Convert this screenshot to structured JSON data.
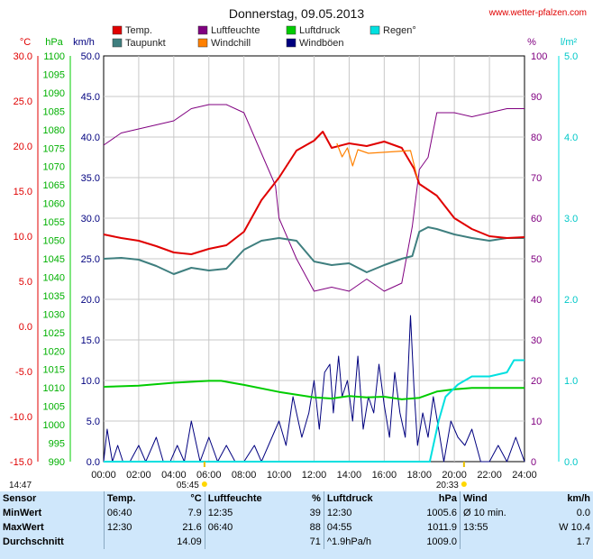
{
  "title": "Donnerstag, 09.05.2013",
  "credit": "www.wetter-pfalzen.com",
  "legend": [
    {
      "label": "Temp.",
      "color": "#e00000"
    },
    {
      "label": "Luftfeuchte",
      "color": "#800080"
    },
    {
      "label": "Luftdruck",
      "color": "#00cc00"
    },
    {
      "label": "Regen°",
      "color": "#00e0e0"
    },
    {
      "label": "Taupunkt",
      "color": "#3f7f7f"
    },
    {
      "label": "Windchill",
      "color": "#ff8000"
    },
    {
      "label": "Windböen",
      "color": "#00007f"
    }
  ],
  "axes": {
    "temp_unit": "°C",
    "press_unit": "hPa",
    "wind_unit": "km/h",
    "hum_unit": "%",
    "rain_unit": "l/m²",
    "temp_ticks": [
      "30.0",
      "25.0",
      "20.0",
      "15.0",
      "10.0",
      "5.0",
      "0.0",
      "-5.0",
      "-10.0",
      "-15.0"
    ],
    "press_ticks": [
      "1100",
      "1095",
      "1090",
      "1085",
      "1080",
      "1075",
      "1070",
      "1065",
      "1060",
      "1055",
      "1050",
      "1045",
      "1040",
      "1035",
      "1030",
      "1025",
      "1020",
      "1015",
      "1010",
      "1005",
      "1000",
      "995",
      "990"
    ],
    "wind_ticks": [
      "50.0",
      "45.0",
      "40.0",
      "35.0",
      "30.0",
      "25.0",
      "20.0",
      "15.0",
      "10.0",
      "5.0",
      "0.0"
    ],
    "hum_ticks": [
      "100",
      "90",
      "80",
      "70",
      "60",
      "50",
      "40",
      "30",
      "20",
      "10",
      "0"
    ],
    "rain_ticks": [
      "5.0",
      "4.0",
      "3.0",
      "2.0",
      "1.0",
      "0.0"
    ],
    "time_ticks": [
      "00:00",
      "02:00",
      "04:00",
      "06:00",
      "08:00",
      "10:00",
      "12:00",
      "14:00",
      "16:00",
      "18:00",
      "20:00",
      "22:00",
      "24:00"
    ]
  },
  "sun": {
    "sunrise": "05:45",
    "sunset": "20:33",
    "moonrise": "14:47"
  },
  "colors": {
    "temp": "#e00000",
    "dew": "#3f7f7f",
    "hum": "#800080",
    "press": "#00cc00",
    "rain": "#00e0e0",
    "chill": "#ff8000",
    "gust": "#00007f",
    "stats_bg": "#cfe7fb"
  },
  "chart_data": {
    "type": "line",
    "title": "Donnerstag, 09.05.2013",
    "x_unit": "hours",
    "xlim": [
      0,
      24
    ],
    "series": [
      {
        "name": "Temp.",
        "axis": "temp",
        "ylim": [
          -15,
          30
        ],
        "x": [
          0,
          1,
          2,
          3,
          4,
          5,
          6,
          7,
          8,
          9,
          10,
          11,
          12,
          12.5,
          13,
          14,
          15,
          16,
          17,
          17.7,
          18,
          19,
          20,
          21,
          22,
          23,
          24
        ],
        "values": [
          10.2,
          9.8,
          9.5,
          8.9,
          8.2,
          8.0,
          8.6,
          9.0,
          10.5,
          14.0,
          16.5,
          19.5,
          20.6,
          21.6,
          19.8,
          20.3,
          20.0,
          20.5,
          19.8,
          17.5,
          15.8,
          14.5,
          12.0,
          10.8,
          10.0,
          9.8,
          9.9
        ]
      },
      {
        "name": "Taupunkt",
        "axis": "temp",
        "ylim": [
          -15,
          30
        ],
        "x": [
          0,
          1,
          2,
          3,
          4,
          5,
          6,
          7,
          8,
          9,
          10,
          11,
          12,
          13,
          14,
          15,
          16,
          17,
          17.6,
          18,
          18.5,
          19,
          20,
          21,
          22,
          23,
          24
        ],
        "values": [
          7.5,
          7.6,
          7.4,
          6.7,
          5.8,
          6.5,
          6.2,
          6.4,
          8.5,
          9.5,
          9.8,
          9.5,
          7.2,
          6.8,
          7.0,
          6.0,
          6.8,
          7.5,
          7.8,
          10.5,
          11.0,
          10.8,
          10.2,
          9.8,
          9.5,
          9.8,
          9.8
        ]
      },
      {
        "name": "Luftfeuchte",
        "axis": "hum",
        "ylim": [
          0,
          100
        ],
        "x": [
          0,
          1,
          2,
          3,
          4,
          5,
          6,
          7,
          8,
          9,
          9.8,
          10,
          11,
          12,
          13,
          14,
          15,
          16,
          17,
          17.6,
          18,
          18.5,
          19,
          20,
          21,
          22,
          23,
          24
        ],
        "values": [
          78,
          81,
          82,
          83,
          84,
          87,
          88,
          88,
          86,
          76,
          68,
          60,
          50,
          42,
          43,
          42,
          45,
          42,
          44,
          58,
          72,
          75,
          86,
          86,
          85,
          86,
          87,
          87
        ]
      },
      {
        "name": "Luftdruck",
        "axis": "press",
        "ylim": [
          990,
          1100
        ],
        "x": [
          0,
          2,
          4,
          6,
          6.7,
          8,
          10,
          12,
          13,
          14,
          15,
          16,
          17,
          18,
          19,
          20,
          21,
          22,
          24
        ],
        "values": [
          1010.3,
          1010.6,
          1011.4,
          1011.9,
          1011.9,
          1010.8,
          1008.9,
          1007.4,
          1007.1,
          1007.8,
          1007.4,
          1007.6,
          1006.9,
          1007.3,
          1009.0,
          1009.6,
          1010.0,
          1010.0,
          1010.0
        ]
      },
      {
        "name": "Windchill",
        "axis": "temp",
        "ylim": [
          -15,
          30
        ],
        "x": [
          13.3,
          13.6,
          13.9,
          14.2,
          14.5,
          15.1,
          17.5,
          17.9
        ],
        "values": [
          20.3,
          18.8,
          19.8,
          17.8,
          19.6,
          19.2,
          19.5,
          16.4
        ]
      },
      {
        "name": "Regen°",
        "axis": "rain",
        "ylim": [
          0,
          5
        ],
        "x": [
          0,
          18.6,
          19.1,
          19.5,
          20.2,
          21.0,
          22.0,
          23.0,
          23.4,
          24.0
        ],
        "values": [
          0,
          0,
          0.5,
          0.8,
          0.95,
          1.05,
          1.05,
          1.1,
          1.25,
          1.25
        ]
      },
      {
        "name": "Windböen",
        "axis": "wind",
        "ylim": [
          0,
          50
        ],
        "x": [
          0,
          0.2,
          0.5,
          0.8,
          1.1,
          1.5,
          2,
          2.4,
          3,
          3.4,
          3.8,
          4.2,
          4.6,
          5,
          5.5,
          6,
          6.5,
          7,
          7.5,
          8,
          8.6,
          9,
          9.6,
          10,
          10.4,
          10.8,
          11.3,
          11.7,
          12,
          12.3,
          12.6,
          12.9,
          13.1,
          13.4,
          13.6,
          13.9,
          14.2,
          14.5,
          14.8,
          15.1,
          15.4,
          15.7,
          16,
          16.3,
          16.6,
          16.9,
          17.2,
          17.5,
          17.7,
          17.9,
          18.2,
          18.5,
          18.8,
          19.1,
          19.4,
          19.8,
          20.2,
          20.6,
          21,
          21.5,
          22,
          22.5,
          23,
          23.5,
          24
        ],
        "values": [
          0,
          4,
          0,
          2,
          0,
          0,
          2,
          0,
          3,
          0,
          0,
          2,
          0,
          5,
          0,
          3,
          0,
          2,
          0,
          0,
          2,
          0,
          3,
          5,
          2,
          8,
          3,
          6,
          10,
          4,
          11,
          12,
          6,
          13,
          8,
          10,
          5,
          13,
          4,
          8,
          6,
          12,
          7,
          3,
          11,
          6,
          3,
          18,
          9,
          2,
          6,
          3,
          8,
          4,
          0,
          5,
          3,
          2,
          4,
          0,
          0,
          2,
          0,
          3,
          0
        ]
      }
    ]
  },
  "stats": {
    "headers": {
      "sensor": "Sensor",
      "temp": "Temp.",
      "temp_unit": "°C",
      "hum": "Luftfeuchte",
      "hum_unit": "%",
      "press": "Luftdruck",
      "press_unit": "hPa",
      "wind": "Wind",
      "wind_unit": "km/h"
    },
    "rows": [
      {
        "label": "MinWert",
        "t_time": "06:40",
        "t_val": "7.9",
        "h_time": "12:35",
        "h_val": "39",
        "p_time": "12:30",
        "p_val": "1005.6",
        "w_time": "Ø 10 min.",
        "w_val": "0.0"
      },
      {
        "label": "MaxWert",
        "t_time": "12:30",
        "t_val": "21.6",
        "h_time": "06:40",
        "h_val": "88",
        "p_time": "04:55",
        "p_val": "1011.9",
        "w_time": "13:55",
        "w_val": "W 10.4"
      },
      {
        "label": "Durchschnitt",
        "t_time": "",
        "t_val": "14.09",
        "h_time": "",
        "h_val": "71",
        "p_time": "^1.9hPa/h",
        "p_val": "1009.0",
        "w_time": "",
        "w_val": "1.7"
      }
    ]
  }
}
